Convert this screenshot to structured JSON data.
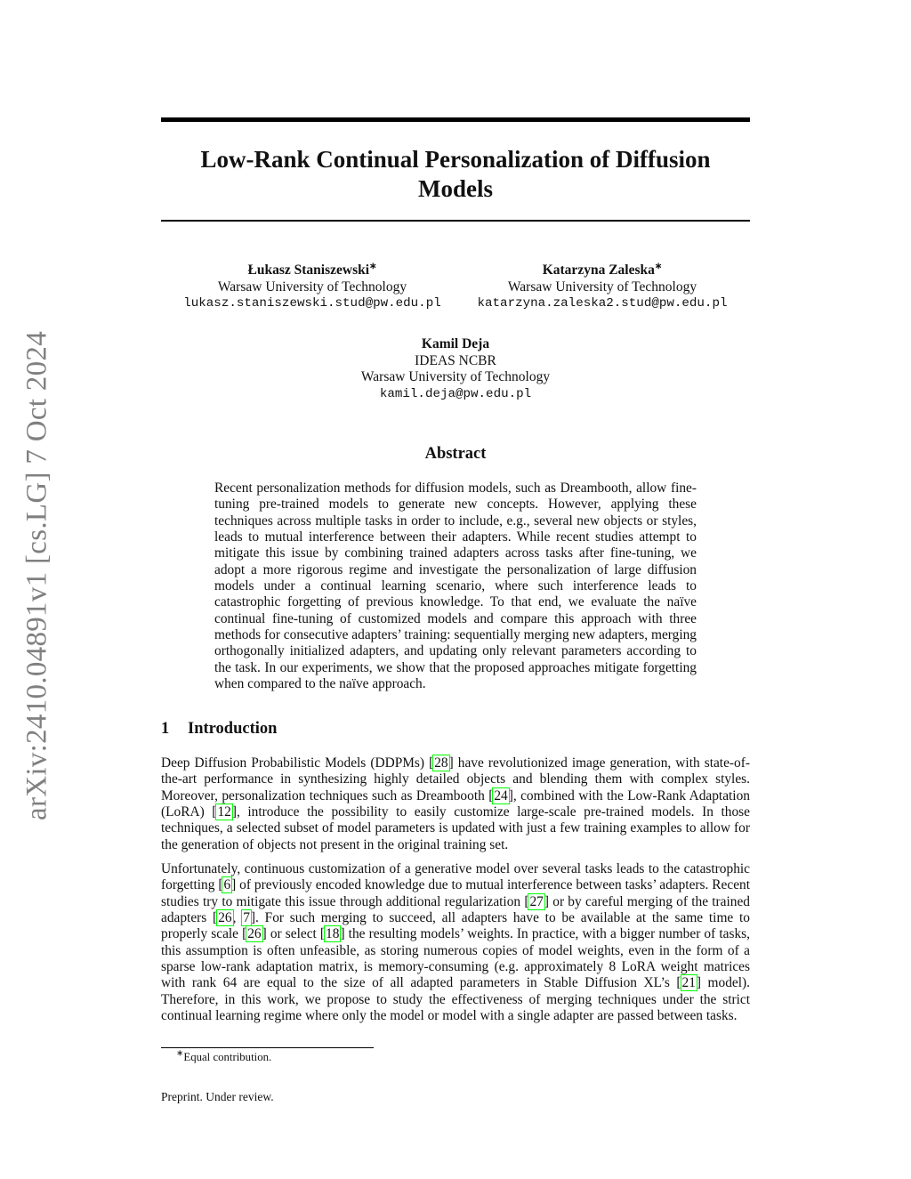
{
  "arxiv_stamp": "arXiv:2410.04891v1  [cs.LG]  7 Oct 2024",
  "title_line1": "Low-Rank Continual Personalization of Diffusion",
  "title_line2": "Models",
  "authors": [
    {
      "name": "Łukasz Staniszewski",
      "mark": "∗",
      "affiliations": [
        "Warsaw University of Technology"
      ],
      "email": "lukasz.staniszewski.stud@pw.edu.pl"
    },
    {
      "name": "Katarzyna Zaleska",
      "mark": "∗",
      "affiliations": [
        "Warsaw University of Technology"
      ],
      "email": "katarzyna.zaleska2.stud@pw.edu.pl"
    },
    {
      "name": "Kamil Deja",
      "mark": "",
      "affiliations": [
        "IDEAS NCBR",
        "Warsaw University of Technology"
      ],
      "email": "kamil.deja@pw.edu.pl"
    }
  ],
  "abstract_heading": "Abstract",
  "abstract": "Recent personalization methods for diffusion models, such as Dreambooth, allow fine-tuning pre-trained models to generate new concepts. However, applying these techniques across multiple tasks in order to include, e.g., several new objects or styles, leads to mutual interference between their adapters. While recent studies attempt to mitigate this issue by combining trained adapters across tasks after fine-tuning, we adopt a more rigorous regime and investigate the personalization of large diffusion models under a continual learning scenario, where such interference leads to catastrophic forgetting of previous knowledge. To that end, we evaluate the naïve continual fine-tuning of customized models and compare this approach with three methods for consecutive adapters’ training: sequentially merging new adapters, merging orthogonally initialized adapters, and updating only relevant parameters according to the task. In our experiments, we show that the proposed approaches mitigate forgetting when compared to the naïve approach.",
  "section": {
    "number": "1",
    "title": "Introduction"
  },
  "intro_paragraphs": [
    [
      {
        "t": "Deep Diffusion Probabilistic Models (DDPMs) ["
      },
      {
        "t": "28",
        "cite": true
      },
      {
        "t": "] have revolutionized image generation, with state-of-the-art performance in synthesizing highly detailed objects and blending them with complex styles.  Moreover, personalization techniques such as Dreambooth ["
      },
      {
        "t": "24",
        "cite": true
      },
      {
        "t": "], combined with the Low-Rank Adaptation (LoRA) ["
      },
      {
        "t": "12",
        "cite": true
      },
      {
        "t": "], introduce the possibility to easily customize large-scale pre-trained models. In those techniques, a selected subset of model parameters is updated with just a few training examples to allow for the generation of objects not present in the original training set."
      }
    ],
    [
      {
        "t": "Unfortunately, continuous customization of a generative model over several tasks leads to the catastrophic forgetting ["
      },
      {
        "t": "6",
        "cite": true
      },
      {
        "t": "] of previously encoded knowledge due to mutual interference between tasks’ adapters.  Recent studies try to mitigate this issue through additional regularization ["
      },
      {
        "t": "27",
        "cite": true
      },
      {
        "t": "] or by careful merging of the trained adapters ["
      },
      {
        "t": "26",
        "cite": true
      },
      {
        "t": ", "
      },
      {
        "t": "7",
        "cite": true
      },
      {
        "t": "].  For such merging to succeed, all adapters have to be available at the same time to properly scale ["
      },
      {
        "t": "26",
        "cite": true
      },
      {
        "t": "] or select ["
      },
      {
        "t": "18",
        "cite": true
      },
      {
        "t": "] the resulting models’ weights. In practice, with a bigger number of tasks, this assumption is often unfeasible, as storing numerous copies of model weights, even in the form of a sparse low-rank adaptation matrix, is memory-consuming (e.g. approximately 8 LoRA weight matrices with rank 64 are equal to the size of all adapted parameters in Stable Diffusion XL’s ["
      },
      {
        "t": "21",
        "cite": true
      },
      {
        "t": "] model). Therefore, in this work, we propose to study the effectiveness of merging techniques under the strict continual learning regime where only the model or model with a single adapter are passed between tasks."
      }
    ]
  ],
  "footnote": {
    "mark": "∗",
    "text": "Equal contribution."
  },
  "footer": "Preprint. Under review.",
  "colors": {
    "citation_box": "#00ff00",
    "arxiv_stamp": "#808080"
  }
}
